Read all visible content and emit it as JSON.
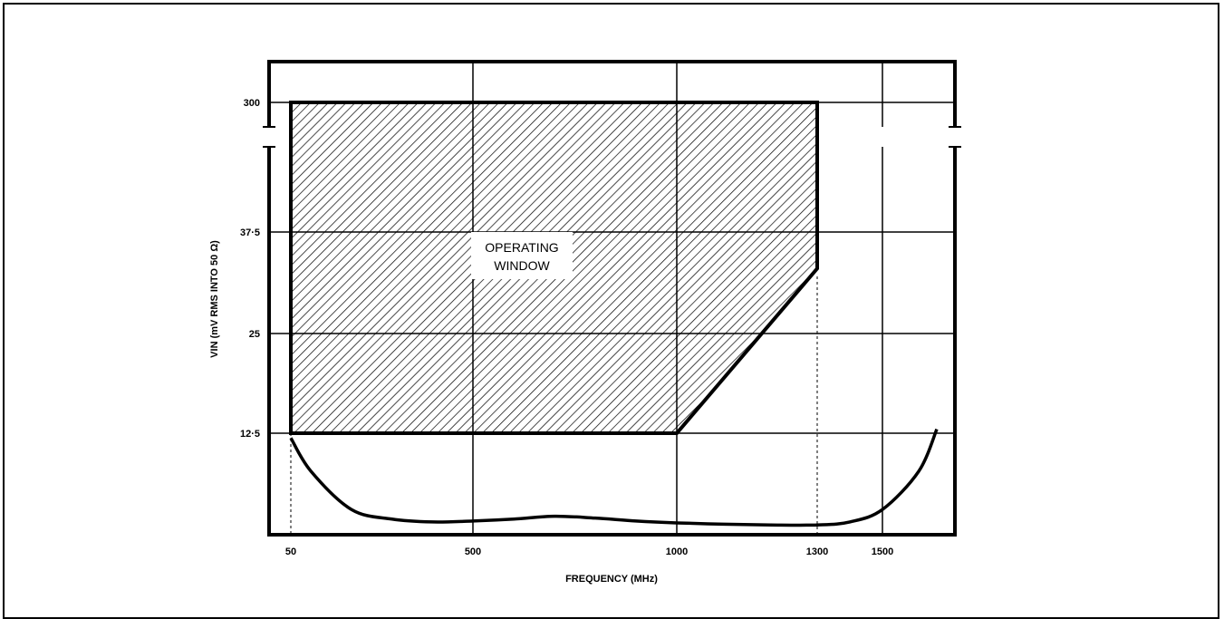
{
  "chart_data": {
    "type": "area",
    "xlabel": "FREQUENCY (MHz)",
    "ylabel": "VIN (mV RMS INTO 50 Ω)",
    "x_ticks": [
      "50",
      "500",
      "1000",
      "1300",
      "1500"
    ],
    "y_ticks": [
      "300",
      "37·5",
      "25",
      "12·5"
    ],
    "annotation": {
      "line1": "OPERATING",
      "line2": "WINDOW"
    },
    "operating_window": {
      "x_range": [
        50,
        1300
      ],
      "y_top": 300,
      "y_bottom": 12.5,
      "slope_from": {
        "x": 1000,
        "y": 12.5
      },
      "slope_to": {
        "x": 1300,
        "y": 33
      }
    },
    "sensitivity_curve": {
      "x": [
        50,
        100,
        200,
        300,
        400,
        500,
        600,
        700,
        800,
        900,
        1000,
        1100,
        1200,
        1300,
        1400,
        1500,
        1600,
        1650
      ],
      "y": [
        12,
        8.5,
        4.5,
        3.5,
        3.2,
        3.3,
        3.5,
        3.8,
        3.6,
        3.3,
        3.1,
        2.9,
        2.7,
        2.7,
        3.2,
        4.5,
        8.5,
        13
      ]
    },
    "grid": true,
    "colors": {
      "line": "#000000",
      "background": "#ffffff"
    }
  }
}
